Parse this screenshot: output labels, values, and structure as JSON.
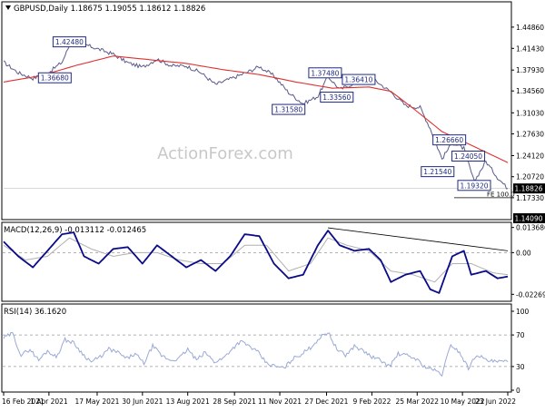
{
  "chart_data": {
    "type": "line",
    "watermark": "ActionForex.com",
    "price_panel": {
      "header": "GBPUSD,Daily  1.18675 1.19055 1.18612 1.18826",
      "ylim": [
        1.1409,
        1.4865
      ],
      "y_ticks": [
        "1.44860",
        "1.41430",
        "1.37930",
        "1.34560",
        "1.31030",
        "1.27630",
        "1.24120",
        "1.20720",
        "1.17330"
      ],
      "y_tick_values": [
        1.4486,
        1.4143,
        1.3793,
        1.3456,
        1.3103,
        1.2763,
        1.2412,
        1.2072,
        1.1733
      ],
      "last_price_label": "1.18826",
      "last_price": 1.18826,
      "bottom_label": "1.14090",
      "fe_label": "FE 100.0",
      "fe_level": 1.1733,
      "swing_labels": [
        {
          "text": "1.42480",
          "i": 45,
          "v": 1.4248
        },
        {
          "text": "1.36680",
          "i": 35,
          "v": 1.3668
        },
        {
          "text": "1.37480",
          "i": 220,
          "v": 1.3748
        },
        {
          "text": "1.36410",
          "i": 243,
          "v": 1.3641
        },
        {
          "text": "1.33560",
          "i": 228,
          "v": 1.3356
        },
        {
          "text": "1.31580",
          "i": 195,
          "v": 1.3158
        },
        {
          "text": "1.26660",
          "i": 305,
          "v": 1.2666
        },
        {
          "text": "1.24050",
          "i": 318,
          "v": 1.2405
        },
        {
          "text": "1.21540",
          "i": 297,
          "v": 1.2154
        },
        {
          "text": "1.19320",
          "i": 322,
          "v": 1.1932
        }
      ],
      "series": [
        {
          "name": "price",
          "color": "#5a5a8a",
          "points": [
            [
              0,
              1.392
            ],
            [
              10,
              1.375
            ],
            [
              20,
              1.366
            ],
            [
              30,
              1.374
            ],
            [
              40,
              1.392
            ],
            [
              45,
              1.419
            ],
            [
              55,
              1.421
            ],
            [
              65,
              1.413
            ],
            [
              75,
              1.405
            ],
            [
              85,
              1.391
            ],
            [
              95,
              1.384
            ],
            [
              105,
              1.397
            ],
            [
              115,
              1.386
            ],
            [
              125,
              1.386
            ],
            [
              135,
              1.375
            ],
            [
              145,
              1.356
            ],
            [
              155,
              1.365
            ],
            [
              165,
              1.374
            ],
            [
              175,
              1.385
            ],
            [
              185,
              1.37
            ],
            [
              195,
              1.343
            ],
            [
              205,
              1.325
            ],
            [
              215,
              1.337
            ],
            [
              222,
              1.369
            ],
            [
              230,
              1.348
            ],
            [
              240,
              1.358
            ],
            [
              250,
              1.371
            ],
            [
              258,
              1.356
            ],
            [
              265,
              1.344
            ],
            [
              275,
              1.322
            ],
            [
              285,
              1.319
            ],
            [
              292,
              1.285
            ],
            [
              300,
              1.236
            ],
            [
              307,
              1.262
            ],
            [
              315,
              1.253
            ],
            [
              322,
              1.199
            ],
            [
              330,
              1.232
            ],
            [
              338,
              1.206
            ],
            [
              345,
              1.188
            ]
          ]
        },
        {
          "name": "sma",
          "color": "#e03030",
          "points": [
            [
              0,
              1.36
            ],
            [
              25,
              1.37
            ],
            [
              50,
              1.387
            ],
            [
              75,
              1.402
            ],
            [
              100,
              1.396
            ],
            [
              125,
              1.39
            ],
            [
              150,
              1.38
            ],
            [
              175,
              1.372
            ],
            [
              200,
              1.36
            ],
            [
              225,
              1.35
            ],
            [
              250,
              1.352
            ],
            [
              265,
              1.345
            ],
            [
              280,
              1.318
            ],
            [
              300,
              1.28
            ],
            [
              320,
              1.258
            ],
            [
              345,
              1.23
            ]
          ]
        }
      ]
    },
    "macd_panel": {
      "header": "MACD(12,26,9) -0.013112 -0.012465",
      "ylim": [
        -0.0255,
        0.0155
      ],
      "y_ticks": [
        "0.013686",
        "0.00",
        "-0.022698"
      ],
      "y_tick_values": [
        0.013686,
        0.0,
        -0.022698
      ],
      "series": [
        {
          "name": "macd",
          "color": "#0a0a8a",
          "points": [
            [
              0,
              0.006
            ],
            [
              10,
              -0.002
            ],
            [
              20,
              -0.008
            ],
            [
              30,
              0.001
            ],
            [
              40,
              0.01
            ],
            [
              48,
              0.011
            ],
            [
              55,
              -0.002
            ],
            [
              65,
              -0.006
            ],
            [
              75,
              0.002
            ],
            [
              85,
              0.003
            ],
            [
              95,
              -0.006
            ],
            [
              105,
              0.004
            ],
            [
              115,
              -0.002
            ],
            [
              125,
              -0.008
            ],
            [
              135,
              -0.004
            ],
            [
              145,
              -0.01
            ],
            [
              155,
              -0.002
            ],
            [
              165,
              0.01
            ],
            [
              175,
              0.009
            ],
            [
              185,
              -0.006
            ],
            [
              195,
              -0.014
            ],
            [
              205,
              -0.012
            ],
            [
              215,
              0.004
            ],
            [
              222,
              0.012
            ],
            [
              230,
              0.004
            ],
            [
              240,
              0.001
            ],
            [
              250,
              0.002
            ],
            [
              258,
              -0.004
            ],
            [
              265,
              -0.016
            ],
            [
              275,
              -0.012
            ],
            [
              285,
              -0.01
            ],
            [
              292,
              -0.02
            ],
            [
              298,
              -0.022
            ],
            [
              307,
              -0.002
            ],
            [
              315,
              0.001
            ],
            [
              320,
              -0.012
            ],
            [
              330,
              -0.01
            ],
            [
              338,
              -0.014
            ],
            [
              345,
              -0.013
            ]
          ]
        },
        {
          "name": "signal",
          "color": "#b0b0b0",
          "points": [
            [
              0,
              0.004
            ],
            [
              15,
              -0.004
            ],
            [
              30,
              -0.002
            ],
            [
              45,
              0.008
            ],
            [
              60,
              0.002
            ],
            [
              75,
              -0.002
            ],
            [
              90,
              0.0
            ],
            [
              105,
              0.0
            ],
            [
              120,
              -0.004
            ],
            [
              135,
              -0.006
            ],
            [
              150,
              -0.006
            ],
            [
              165,
              0.004
            ],
            [
              180,
              0.004
            ],
            [
              195,
              -0.01
            ],
            [
              210,
              -0.006
            ],
            [
              222,
              0.008
            ],
            [
              235,
              0.004
            ],
            [
              250,
              0.001
            ],
            [
              265,
              -0.01
            ],
            [
              280,
              -0.012
            ],
            [
              295,
              -0.016
            ],
            [
              307,
              -0.006
            ],
            [
              320,
              -0.006
            ],
            [
              335,
              -0.011
            ],
            [
              345,
              -0.012
            ]
          ]
        }
      ],
      "trendline": [
        [
          222,
          0.0135
        ],
        [
          345,
          0.001
        ]
      ]
    },
    "rsi_panel": {
      "header": "RSI(14) 36.1620",
      "ylim": [
        0,
        100
      ],
      "y_ticks": [
        "100",
        "70",
        "30",
        "0"
      ],
      "y_tick_values": [
        100,
        70,
        30,
        0
      ],
      "levels": [
        70,
        30
      ],
      "series": [
        {
          "name": "rsi",
          "color": "#9aa9d6",
          "points": [
            [
              0,
              66
            ],
            [
              6,
              72
            ],
            [
              12,
              44
            ],
            [
              18,
              52
            ],
            [
              24,
              38
            ],
            [
              30,
              50
            ],
            [
              36,
              42
            ],
            [
              42,
              64
            ],
            [
              48,
              60
            ],
            [
              54,
              46
            ],
            [
              60,
              36
            ],
            [
              66,
              42
            ],
            [
              72,
              52
            ],
            [
              78,
              48
            ],
            [
              84,
              40
            ],
            [
              90,
              46
            ],
            [
              96,
              34
            ],
            [
              102,
              56
            ],
            [
              108,
              44
            ],
            [
              114,
              38
            ],
            [
              120,
              40
            ],
            [
              126,
              52
            ],
            [
              132,
              38
            ],
            [
              138,
              48
            ],
            [
              144,
              36
            ],
            [
              150,
              40
            ],
            [
              156,
              52
            ],
            [
              162,
              62
            ],
            [
              168,
              56
            ],
            [
              174,
              48
            ],
            [
              180,
              34
            ],
            [
              186,
              30
            ],
            [
              192,
              28
            ],
            [
              198,
              40
            ],
            [
              204,
              46
            ],
            [
              210,
              54
            ],
            [
              216,
              66
            ],
            [
              222,
              74
            ],
            [
              228,
              52
            ],
            [
              234,
              44
            ],
            [
              240,
              56
            ],
            [
              246,
              50
            ],
            [
              252,
              42
            ],
            [
              258,
              38
            ],
            [
              264,
              30
            ],
            [
              270,
              46
            ],
            [
              276,
              44
            ],
            [
              282,
              40
            ],
            [
              288,
              30
            ],
            [
              294,
              26
            ],
            [
              300,
              20
            ],
            [
              306,
              58
            ],
            [
              312,
              48
            ],
            [
              318,
              28
            ],
            [
              324,
              46
            ],
            [
              330,
              38
            ],
            [
              336,
              36
            ],
            [
              345,
              36
            ]
          ]
        }
      ]
    },
    "x_labels": [
      {
        "text": "16 Feb 2021",
        "i": 0
      },
      {
        "text": "1 Apr 2021",
        "i": 31
      },
      {
        "text": "17 May 2021",
        "i": 64
      },
      {
        "text": "30 Jun 2021",
        "i": 95
      },
      {
        "text": "13 Aug 2021",
        "i": 126
      },
      {
        "text": "28 Sep 2021",
        "i": 158
      },
      {
        "text": "11 Nov 2021",
        "i": 189
      },
      {
        "text": "27 Dec 2021",
        "i": 221
      },
      {
        "text": "9 Feb 2022",
        "i": 252
      },
      {
        "text": "25 Mar 2022",
        "i": 283
      },
      {
        "text": "10 May 2022",
        "i": 314
      },
      {
        "text": "23 Jun 2022",
        "i": 345
      }
    ]
  }
}
